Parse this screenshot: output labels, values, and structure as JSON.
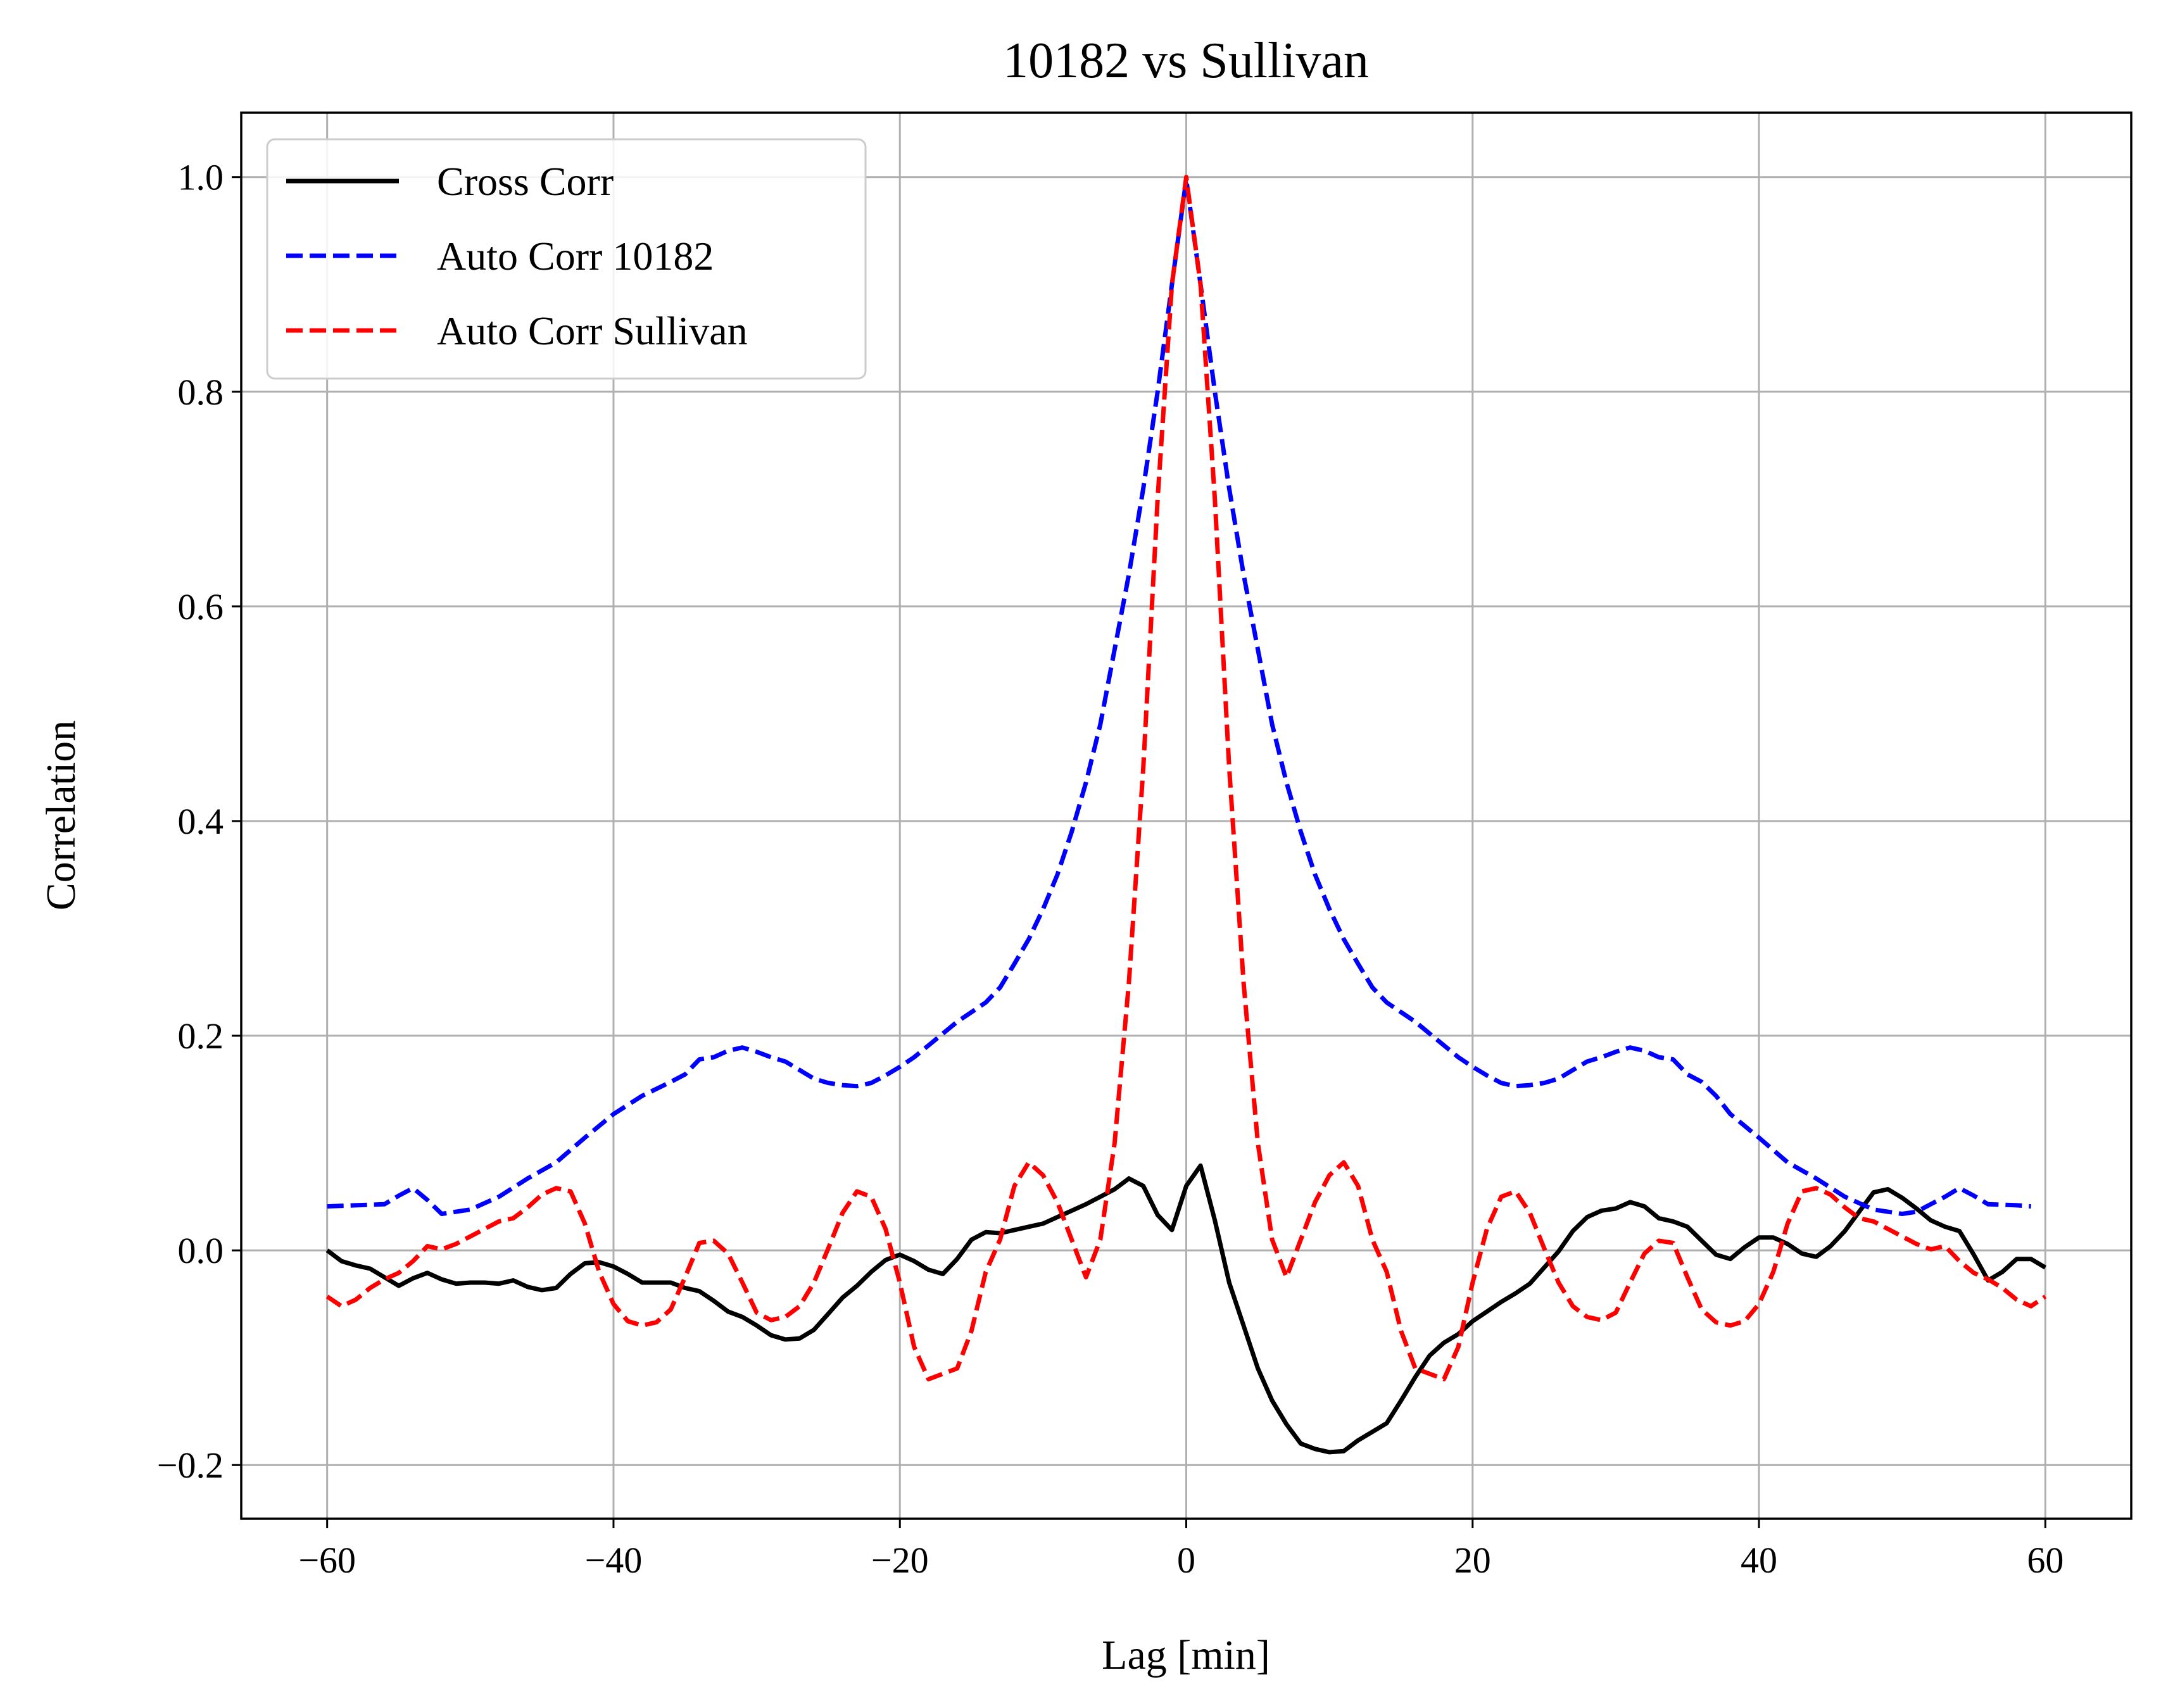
{
  "chart_data": {
    "type": "line",
    "title": "10182 vs Sullivan",
    "xlabel": "Lag [min]",
    "ylabel": "Correlation",
    "xlim": [
      -66,
      66
    ],
    "ylim": [
      -0.25,
      1.06
    ],
    "xticks": [
      -60,
      -40,
      -20,
      0,
      20,
      40,
      60
    ],
    "xtick_labels": [
      "−60",
      "−40",
      "−20",
      "0",
      "20",
      "40",
      "60"
    ],
    "yticks": [
      -0.2,
      0.0,
      0.2,
      0.4,
      0.6,
      0.8,
      1.0
    ],
    "ytick_labels": [
      "−0.2",
      "0.0",
      "0.2",
      "0.4",
      "0.6",
      "0.8",
      "1.0"
    ],
    "grid": true,
    "legend_position": "upper-left",
    "series": [
      {
        "name": "Cross Corr",
        "color": "#000000",
        "style": "solid",
        "x": [
          -60,
          -59,
          -58,
          -57,
          -56,
          -55,
          -54,
          -53,
          -52,
          -51,
          -50,
          -49,
          -48,
          -47,
          -46,
          -45,
          -44,
          -43,
          -42,
          -41,
          -40,
          -39,
          -38,
          -37,
          -36,
          -35,
          -34,
          -33,
          -32,
          -31,
          -30,
          -29,
          -28,
          -27,
          -26,
          -25,
          -24,
          -23,
          -22,
          -21,
          -20,
          -19,
          -18,
          -17,
          -16,
          -15,
          -14,
          -13,
          -12,
          -11,
          -10,
          -9,
          -8,
          -7,
          -6,
          -5,
          -4,
          -3,
          -2,
          -1,
          0,
          1,
          2,
          3,
          4,
          5,
          6,
          7,
          8,
          9,
          10,
          11,
          12,
          13,
          14,
          15,
          16,
          17,
          18,
          19,
          20,
          21,
          22,
          23,
          24,
          25,
          26,
          27,
          28,
          29,
          30,
          31,
          32,
          33,
          34,
          35,
          36,
          37,
          38,
          39,
          40,
          41,
          42,
          43,
          44,
          45,
          46,
          47,
          48,
          49,
          50,
          51,
          52,
          53,
          54,
          55,
          56,
          57,
          58,
          59,
          60
        ],
        "y": [
          0.0,
          -0.01,
          -0.014,
          -0.017,
          -0.025,
          -0.033,
          -0.026,
          -0.021,
          -0.027,
          -0.031,
          -0.03,
          -0.03,
          -0.031,
          -0.028,
          -0.034,
          -0.037,
          -0.035,
          -0.022,
          -0.012,
          -0.011,
          -0.015,
          -0.022,
          -0.03,
          -0.03,
          -0.03,
          -0.035,
          -0.038,
          -0.047,
          -0.057,
          -0.062,
          -0.07,
          -0.079,
          -0.083,
          -0.082,
          -0.074,
          -0.059,
          -0.044,
          -0.033,
          -0.02,
          -0.009,
          -0.004,
          -0.01,
          -0.018,
          -0.022,
          -0.008,
          0.01,
          0.017,
          0.016,
          0.019,
          0.022,
          0.025,
          0.031,
          0.037,
          0.043,
          0.05,
          0.057,
          0.067,
          0.06,
          0.033,
          0.019,
          0.06,
          0.079,
          0.028,
          -0.03,
          -0.07,
          -0.11,
          -0.14,
          -0.162,
          -0.18,
          -0.185,
          -0.188,
          -0.187,
          -0.177,
          -0.169,
          -0.161,
          -0.14,
          -0.118,
          -0.098,
          -0.086,
          -0.078,
          -0.066,
          -0.057,
          -0.048,
          -0.04,
          -0.031,
          -0.016,
          -0.001,
          0.018,
          0.031,
          0.037,
          0.039,
          0.045,
          0.041,
          0.03,
          0.027,
          0.022,
          0.009,
          -0.004,
          -0.008,
          0.003,
          0.012,
          0.012,
          0.006,
          -0.003,
          -0.006,
          0.004,
          0.018,
          0.036,
          0.054,
          0.057,
          0.049,
          0.039,
          0.028,
          0.022,
          0.018,
          -0.004,
          -0.028,
          -0.02,
          -0.008,
          -0.008,
          -0.016
        ]
      },
      {
        "name": "Auto Corr 10182",
        "color": "#0000ff",
        "style": "dashed",
        "x": [
          -60,
          -58,
          -56,
          -55,
          -54,
          -53,
          -52,
          -50,
          -48,
          -46,
          -44,
          -42,
          -40,
          -38,
          -36,
          -35,
          -34,
          -33,
          -32,
          -31,
          -30,
          -29,
          -28,
          -27,
          -26,
          -25,
          -24,
          -23,
          -22,
          -21,
          -20,
          -19,
          -18,
          -17,
          -16,
          -15,
          -14,
          -13,
          -12,
          -11,
          -10,
          -9,
          -8,
          -7,
          -6,
          -5,
          -4,
          -3,
          -2,
          -1,
          0,
          1,
          2,
          3,
          4,
          5,
          6,
          7,
          8,
          9,
          10,
          11,
          12,
          13,
          14,
          15,
          16,
          17,
          18,
          19,
          20,
          21,
          22,
          23,
          24,
          25,
          26,
          27,
          28,
          29,
          30,
          31,
          32,
          33,
          34,
          35,
          36,
          37,
          38,
          40,
          42,
          44,
          46,
          48,
          50,
          51,
          52,
          53,
          54,
          55,
          56,
          58,
          59
        ],
        "y": [
          0.041,
          0.042,
          0.043,
          0.051,
          0.058,
          0.047,
          0.034,
          0.038,
          0.05,
          0.067,
          0.082,
          0.105,
          0.127,
          0.144,
          0.157,
          0.164,
          0.178,
          0.18,
          0.186,
          0.189,
          0.185,
          0.18,
          0.176,
          0.168,
          0.16,
          0.156,
          0.154,
          0.153,
          0.156,
          0.163,
          0.171,
          0.18,
          0.191,
          0.202,
          0.213,
          0.222,
          0.231,
          0.245,
          0.267,
          0.29,
          0.318,
          0.35,
          0.39,
          0.436,
          0.49,
          0.56,
          0.63,
          0.71,
          0.8,
          0.9,
          0.998,
          0.9,
          0.8,
          0.71,
          0.63,
          0.56,
          0.49,
          0.436,
          0.39,
          0.35,
          0.318,
          0.29,
          0.267,
          0.245,
          0.231,
          0.222,
          0.213,
          0.202,
          0.191,
          0.18,
          0.171,
          0.163,
          0.156,
          0.153,
          0.154,
          0.156,
          0.16,
          0.168,
          0.176,
          0.18,
          0.185,
          0.189,
          0.186,
          0.18,
          0.178,
          0.164,
          0.157,
          0.144,
          0.127,
          0.105,
          0.082,
          0.067,
          0.05,
          0.038,
          0.034,
          0.036,
          0.043,
          0.05,
          0.058,
          0.051,
          0.043,
          0.042,
          0.041
        ]
      },
      {
        "name": "Auto Corr Sullivan",
        "color": "#ff0000",
        "style": "dashed",
        "x": [
          -60,
          -59,
          -58,
          -57,
          -56,
          -55,
          -54,
          -53,
          -52,
          -51,
          -50,
          -49,
          -48,
          -47,
          -46,
          -45,
          -44,
          -43,
          -42,
          -41,
          -40,
          -39,
          -38,
          -37,
          -36,
          -35,
          -34,
          -33,
          -32,
          -31,
          -30,
          -29,
          -28,
          -27,
          -26,
          -25,
          -24,
          -23,
          -22,
          -21,
          -20,
          -19,
          -18,
          -17,
          -16,
          -15,
          -14,
          -13,
          -12,
          -11,
          -10,
          -9,
          -8,
          -7,
          -6,
          -5,
          -4,
          -3,
          -2,
          -1,
          0,
          1,
          2,
          3,
          4,
          5,
          6,
          7,
          8,
          9,
          10,
          11,
          12,
          13,
          14,
          15,
          16,
          17,
          18,
          19,
          20,
          21,
          22,
          23,
          24,
          25,
          26,
          27,
          28,
          29,
          30,
          31,
          32,
          33,
          34,
          35,
          36,
          37,
          38,
          39,
          40,
          41,
          42,
          43,
          44,
          45,
          46,
          47,
          48,
          49,
          50,
          51,
          52,
          53,
          54,
          55,
          56,
          57,
          58,
          59,
          60
        ],
        "y": [
          -0.043,
          -0.052,
          -0.046,
          -0.035,
          -0.027,
          -0.021,
          -0.01,
          0.004,
          0.001,
          0.006,
          0.013,
          0.02,
          0.027,
          0.03,
          0.04,
          0.052,
          0.058,
          0.055,
          0.025,
          -0.02,
          -0.05,
          -0.066,
          -0.07,
          -0.067,
          -0.055,
          -0.025,
          0.007,
          0.009,
          -0.003,
          -0.03,
          -0.058,
          -0.065,
          -0.062,
          -0.052,
          -0.03,
          0.002,
          0.035,
          0.055,
          0.05,
          0.02,
          -0.03,
          -0.09,
          -0.12,
          -0.115,
          -0.11,
          -0.075,
          -0.02,
          0.01,
          0.06,
          0.082,
          0.07,
          0.045,
          0.01,
          -0.025,
          0.01,
          0.1,
          0.25,
          0.45,
          0.7,
          0.9,
          1.0,
          0.9,
          0.7,
          0.45,
          0.25,
          0.1,
          0.01,
          -0.025,
          0.01,
          0.045,
          0.07,
          0.082,
          0.06,
          0.01,
          -0.02,
          -0.075,
          -0.11,
          -0.115,
          -0.12,
          -0.09,
          -0.03,
          0.02,
          0.05,
          0.055,
          0.035,
          0.002,
          -0.03,
          -0.052,
          -0.062,
          -0.065,
          -0.058,
          -0.03,
          -0.003,
          0.009,
          0.007,
          -0.025,
          -0.055,
          -0.067,
          -0.07,
          -0.066,
          -0.05,
          -0.02,
          0.025,
          0.055,
          0.058,
          0.052,
          0.04,
          0.03,
          0.027,
          0.02,
          0.013,
          0.006,
          0.001,
          0.004,
          -0.01,
          -0.021,
          -0.027,
          -0.035,
          -0.046,
          -0.052,
          -0.043
        ]
      }
    ]
  }
}
